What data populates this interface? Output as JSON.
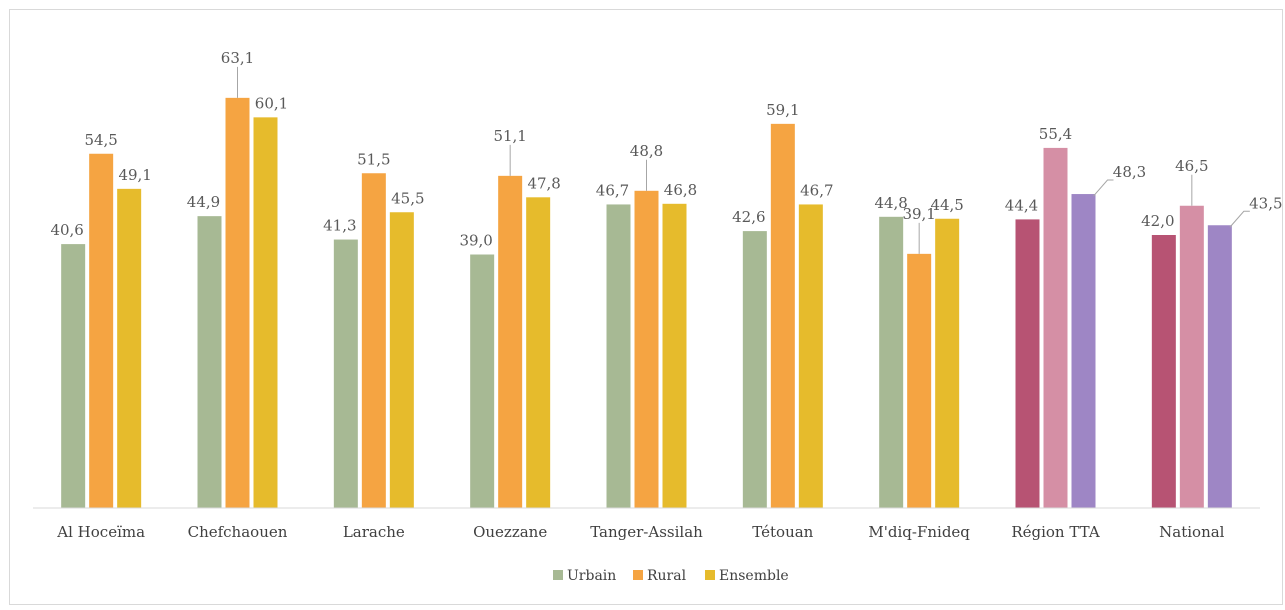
{
  "chart_data": {
    "type": "bar",
    "categories": [
      "Al Hoceïma",
      "Chefchaouen",
      "Larache",
      "Ouezzane",
      "Tanger-Assilah",
      "Tétouan",
      "M'diq-Fnideq",
      "Région TTA",
      "National"
    ],
    "series": [
      {
        "name": "Urbain",
        "values": [
          40.6,
          44.9,
          41.3,
          39.0,
          46.7,
          42.6,
          44.8,
          44.4,
          42.0
        ],
        "labels": [
          "40,6",
          "44,9",
          "41,3",
          "39,0",
          "46,7",
          "42,6",
          "44,8",
          "44,4",
          "42,0"
        ]
      },
      {
        "name": "Rural",
        "values": [
          54.5,
          63.1,
          51.5,
          51.1,
          48.8,
          59.1,
          39.1,
          55.4,
          46.5
        ],
        "labels": [
          "54,5",
          "63,1",
          "51,5",
          "51,1",
          "48,8",
          "59,1",
          "39,1",
          "55,4",
          "46,5"
        ]
      },
      {
        "name": "Ensemble",
        "values": [
          49.1,
          60.1,
          45.5,
          47.8,
          46.8,
          46.7,
          44.5,
          48.3,
          43.5
        ],
        "labels": [
          "49,1",
          "60,1",
          "45,5",
          "47,8",
          "46,8",
          "46,7",
          "44,5",
          "48,3",
          "43,5"
        ]
      }
    ],
    "colors": {
      "Urbain": "#a7b994",
      "Rural": "#f5a442",
      "Ensemble": "#e6bb2c",
      "highlight_urbain": "#b75373",
      "highlight_rural": "#d58fa5",
      "highlight_ensemble": "#9e86c5",
      "axis": "#d9d9d9"
    },
    "highlighted_categories": [
      "Région TTA",
      "National"
    ],
    "ylim": [
      0,
      70
    ],
    "title": "",
    "xlabel": "",
    "ylabel": "",
    "legend": "bottom-center",
    "grid": false
  }
}
